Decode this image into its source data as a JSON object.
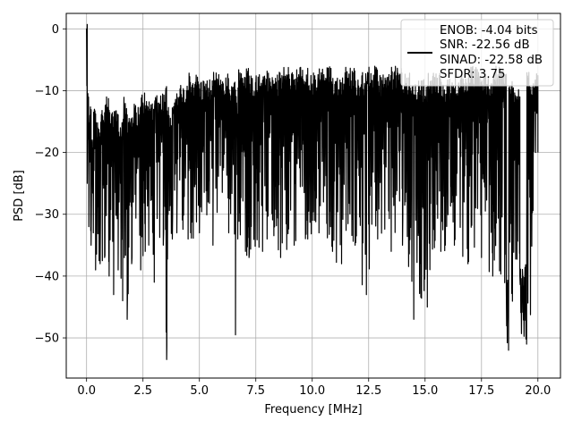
{
  "chart_data": {
    "type": "line",
    "xlabel": "Frequency [MHz]",
    "ylabel": "PSD [dB]",
    "xlim": [
      -0.9,
      21.0
    ],
    "ylim": [
      -56.5,
      2.5
    ],
    "x_ticks": [
      0.0,
      2.5,
      5.0,
      7.5,
      10.0,
      12.5,
      15.0,
      17.5,
      20.0
    ],
    "x_tick_labels": [
      "0.0",
      "2.5",
      "5.0",
      "7.5",
      "10.0",
      "12.5",
      "15.0",
      "17.5",
      "20.0"
    ],
    "y_ticks": [
      0,
      -10,
      -20,
      -30,
      -40,
      -50
    ],
    "y_tick_labels": [
      "0",
      "−10",
      "−20",
      "−30",
      "−40",
      "−50"
    ],
    "grid": true,
    "legend_position": "top-right",
    "legend_entries": [
      "ENOB: -4.04 bits",
      "SNR: -22.56 dB",
      "SINAD: -22.58 dB",
      "SFDR: 3.75"
    ],
    "series_color": "#000000",
    "series": [
      {
        "x": [
          0.0,
          0.03,
          0.06,
          0.1,
          0.15,
          0.2,
          0.25,
          0.3,
          0.35,
          0.4,
          0.5,
          0.6,
          0.7,
          0.8,
          0.9,
          1.0,
          1.1,
          1.2,
          1.3,
          1.4,
          1.5,
          1.6,
          1.7,
          1.8,
          1.9,
          2.0,
          2.2,
          2.4,
          2.5,
          2.6,
          2.8,
          3.0,
          3.2,
          3.4,
          3.5,
          3.55,
          3.6,
          3.8,
          3.9,
          4.0,
          4.2,
          4.5,
          4.8,
          5.0,
          5.3,
          5.6,
          6.0,
          6.3,
          6.5,
          6.6,
          6.65,
          6.7,
          6.9,
          7.2,
          7.5,
          7.8,
          7.9,
          8.0,
          8.3,
          8.6,
          8.9,
          9.2,
          9.5,
          9.8,
          10.0,
          10.3,
          10.6,
          10.9,
          11.0,
          11.3,
          11.6,
          11.9,
          12.2,
          12.4,
          12.6,
          12.9,
          13.2,
          13.5,
          13.8,
          14.0,
          14.2,
          14.5,
          14.8,
          15.1,
          15.4,
          15.7,
          16.0,
          16.3,
          16.6,
          16.9,
          17.2,
          17.5,
          17.8,
          18.0,
          18.3,
          18.6,
          18.7,
          18.9,
          19.2,
          19.5,
          19.8,
          20.0
        ],
        "y": [
          0.0,
          -25.0,
          -12.0,
          -32.0,
          -14.0,
          -35.0,
          -18.0,
          -33.0,
          -13.0,
          -39.0,
          -16.0,
          -38.0,
          -14.0,
          -37.0,
          -13.0,
          -40.0,
          -15.0,
          -43.0,
          -14.0,
          -39.0,
          -16.0,
          -44.0,
          -13.0,
          -47.0,
          -15.0,
          -38.0,
          -14.0,
          -39.0,
          -12.0,
          -36.0,
          -13.0,
          -41.0,
          -12.0,
          -35.0,
          -11.0,
          -53.5,
          -14.0,
          -34.0,
          -12.0,
          -33.0,
          -11.0,
          -34.0,
          -9.0,
          -33.0,
          -10.0,
          -35.0,
          -9.0,
          -33.0,
          -10.0,
          -49.5,
          -12.0,
          -34.0,
          -8.0,
          -37.0,
          -9.0,
          -36.0,
          -8.0,
          -34.0,
          -9.0,
          -37.0,
          -8.0,
          -35.0,
          -8.0,
          -34.0,
          -9.0,
          -33.0,
          -8.0,
          -36.0,
          -9.0,
          -38.0,
          -8.0,
          -35.0,
          -9.0,
          -43.0,
          -8.0,
          -34.0,
          -9.0,
          -36.0,
          -8.0,
          -35.0,
          -9.0,
          -47.0,
          -10.0,
          -45.0,
          -9.0,
          -36.0,
          -10.0,
          -35.0,
          -9.0,
          -38.0,
          -8.0,
          -37.0,
          -9.0,
          -40.0,
          -8.0,
          -42.0,
          -52.0,
          -10.0,
          -40.0,
          -51.0,
          -9.0,
          -20.0
        ]
      }
    ]
  }
}
